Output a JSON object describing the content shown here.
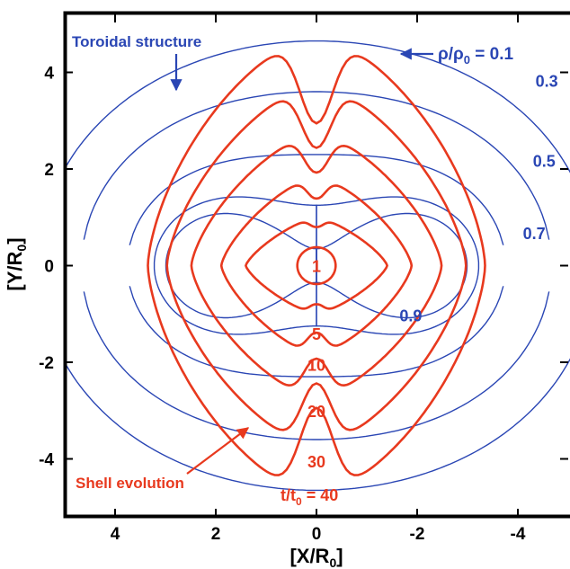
{
  "chart_data": {
    "type": "line",
    "xlabel": "[X/R",
    "xlabel_sub": "0",
    "xlabel_close": "]",
    "ylabel": "[Y/R",
    "ylabel_sub": "0",
    "ylabel_close": "]",
    "xlim": [
      5.0,
      -5.0
    ],
    "ylim": [
      -5.2,
      5.2
    ],
    "x_ticks": [
      4,
      2,
      0,
      -2,
      -4
    ],
    "x_tick_labels": [
      "4",
      "2",
      "0",
      "-2",
      "-4"
    ],
    "y_ticks": [
      4,
      2,
      0,
      -2,
      -4
    ],
    "y_tick_labels": [
      "4",
      "2",
      "0",
      "-2",
      "-4"
    ],
    "grid": false,
    "colors": {
      "density": "#2a46b4",
      "shell": "#e8391e",
      "axes": "#000000"
    },
    "density_contours": {
      "name": "Toroidal structure",
      "levels": [
        {
          "label": "0.1",
          "axis_y": 4.65,
          "value": 0.1
        },
        {
          "label": "0.3",
          "axis_y": 3.6,
          "value": 0.3
        },
        {
          "label": "0.5",
          "axis_y": 2.3,
          "value": 0.5
        },
        {
          "label": "0.7",
          "axis_y": 1.25,
          "value": 0.7
        },
        {
          "label": "0.9",
          "axis_y": 0.35,
          "value": 0.9
        }
      ]
    },
    "shell_evolution": {
      "name": "Shell evolution",
      "shells": [
        {
          "label": "1",
          "t": 1,
          "extent_x": 0.38,
          "extent_y": 0.38
        },
        {
          "label": "5",
          "t": 5,
          "extent_x": 1.3,
          "extent_y": 1.0
        },
        {
          "label": "10",
          "t": 10,
          "extent_x": 1.75,
          "extent_y": 1.85
        },
        {
          "label": "20",
          "t": 20,
          "extent_x": 2.3,
          "extent_y": 2.75
        },
        {
          "label": "30",
          "t": 30,
          "extent_x": 2.75,
          "extent_y": 3.75
        },
        {
          "label": "40",
          "t": 40,
          "extent_x": 3.1,
          "extent_y": 4.75
        }
      ]
    },
    "annotations": {
      "toroidal": "Toroidal structure",
      "shell": "Shell evolution",
      "rho_label": "ρ/ρ",
      "rho_sub": "0",
      "rho_eq": " = 0.1",
      "t_label": "t/t",
      "t_sub": "0",
      "t_eq": " = 40"
    }
  }
}
